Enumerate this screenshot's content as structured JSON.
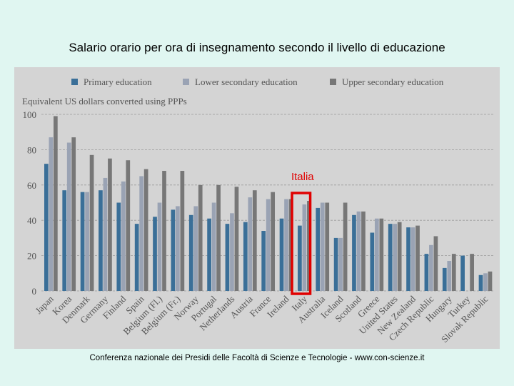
{
  "slide": {
    "title": "Salario orario per ora di insegnamento secondo il livello di educazione",
    "footer": "Conferenza nazionale dei Presidi delle Facoltà di Scienze e Tecnologie  -   www.con-scienze.it"
  },
  "annotation": {
    "label": "Italia",
    "category": "Italy",
    "color": "#e00000"
  },
  "colors": {
    "primary": "#3a6f98",
    "lower": "#9aa3b4",
    "upper": "#777777",
    "panel": "#d4d4d4"
  },
  "chart_data": {
    "type": "bar",
    "ylabel": "Equivalent US dollars converted using PPPs",
    "ylim": [
      0,
      100
    ],
    "yticks": [
      0,
      20,
      40,
      60,
      80,
      100
    ],
    "grid": true,
    "legend_position": "top",
    "categories": [
      "Japan",
      "Korea",
      "Denmark",
      "Germany",
      "Finland",
      "Spain",
      "Belgium (Fl.)",
      "Belgium (Fr.)",
      "Norway",
      "Portugal",
      "Netherlands",
      "Austria",
      "France",
      "Ireland",
      "Italy",
      "Australia",
      "Iceland",
      "Scotland",
      "Greece",
      "United States",
      "New Zealand",
      "Czech Republic",
      "Hungary",
      "Turkey",
      "Slovak Republic"
    ],
    "series": [
      {
        "name": "Primary education",
        "values": [
          72,
          57,
          56,
          57,
          50,
          38,
          42,
          46,
          43,
          41,
          38,
          39,
          34,
          41,
          37,
          47,
          30,
          43,
          33,
          38,
          36,
          21,
          13,
          20,
          9
        ]
      },
      {
        "name": "Lower secondary education",
        "values": [
          87,
          84,
          56,
          64,
          62,
          65,
          50,
          48,
          48,
          50,
          44,
          53,
          52,
          52,
          49,
          50,
          30,
          45,
          41,
          38,
          36,
          26,
          17,
          null,
          10
        ]
      },
      {
        "name": "Upper secondary education",
        "values": [
          99,
          87,
          77,
          75,
          74,
          69,
          68,
          68,
          60,
          60,
          59,
          57,
          56,
          52,
          51,
          50,
          50,
          45,
          41,
          39,
          37,
          31,
          21,
          21,
          11
        ]
      }
    ]
  }
}
